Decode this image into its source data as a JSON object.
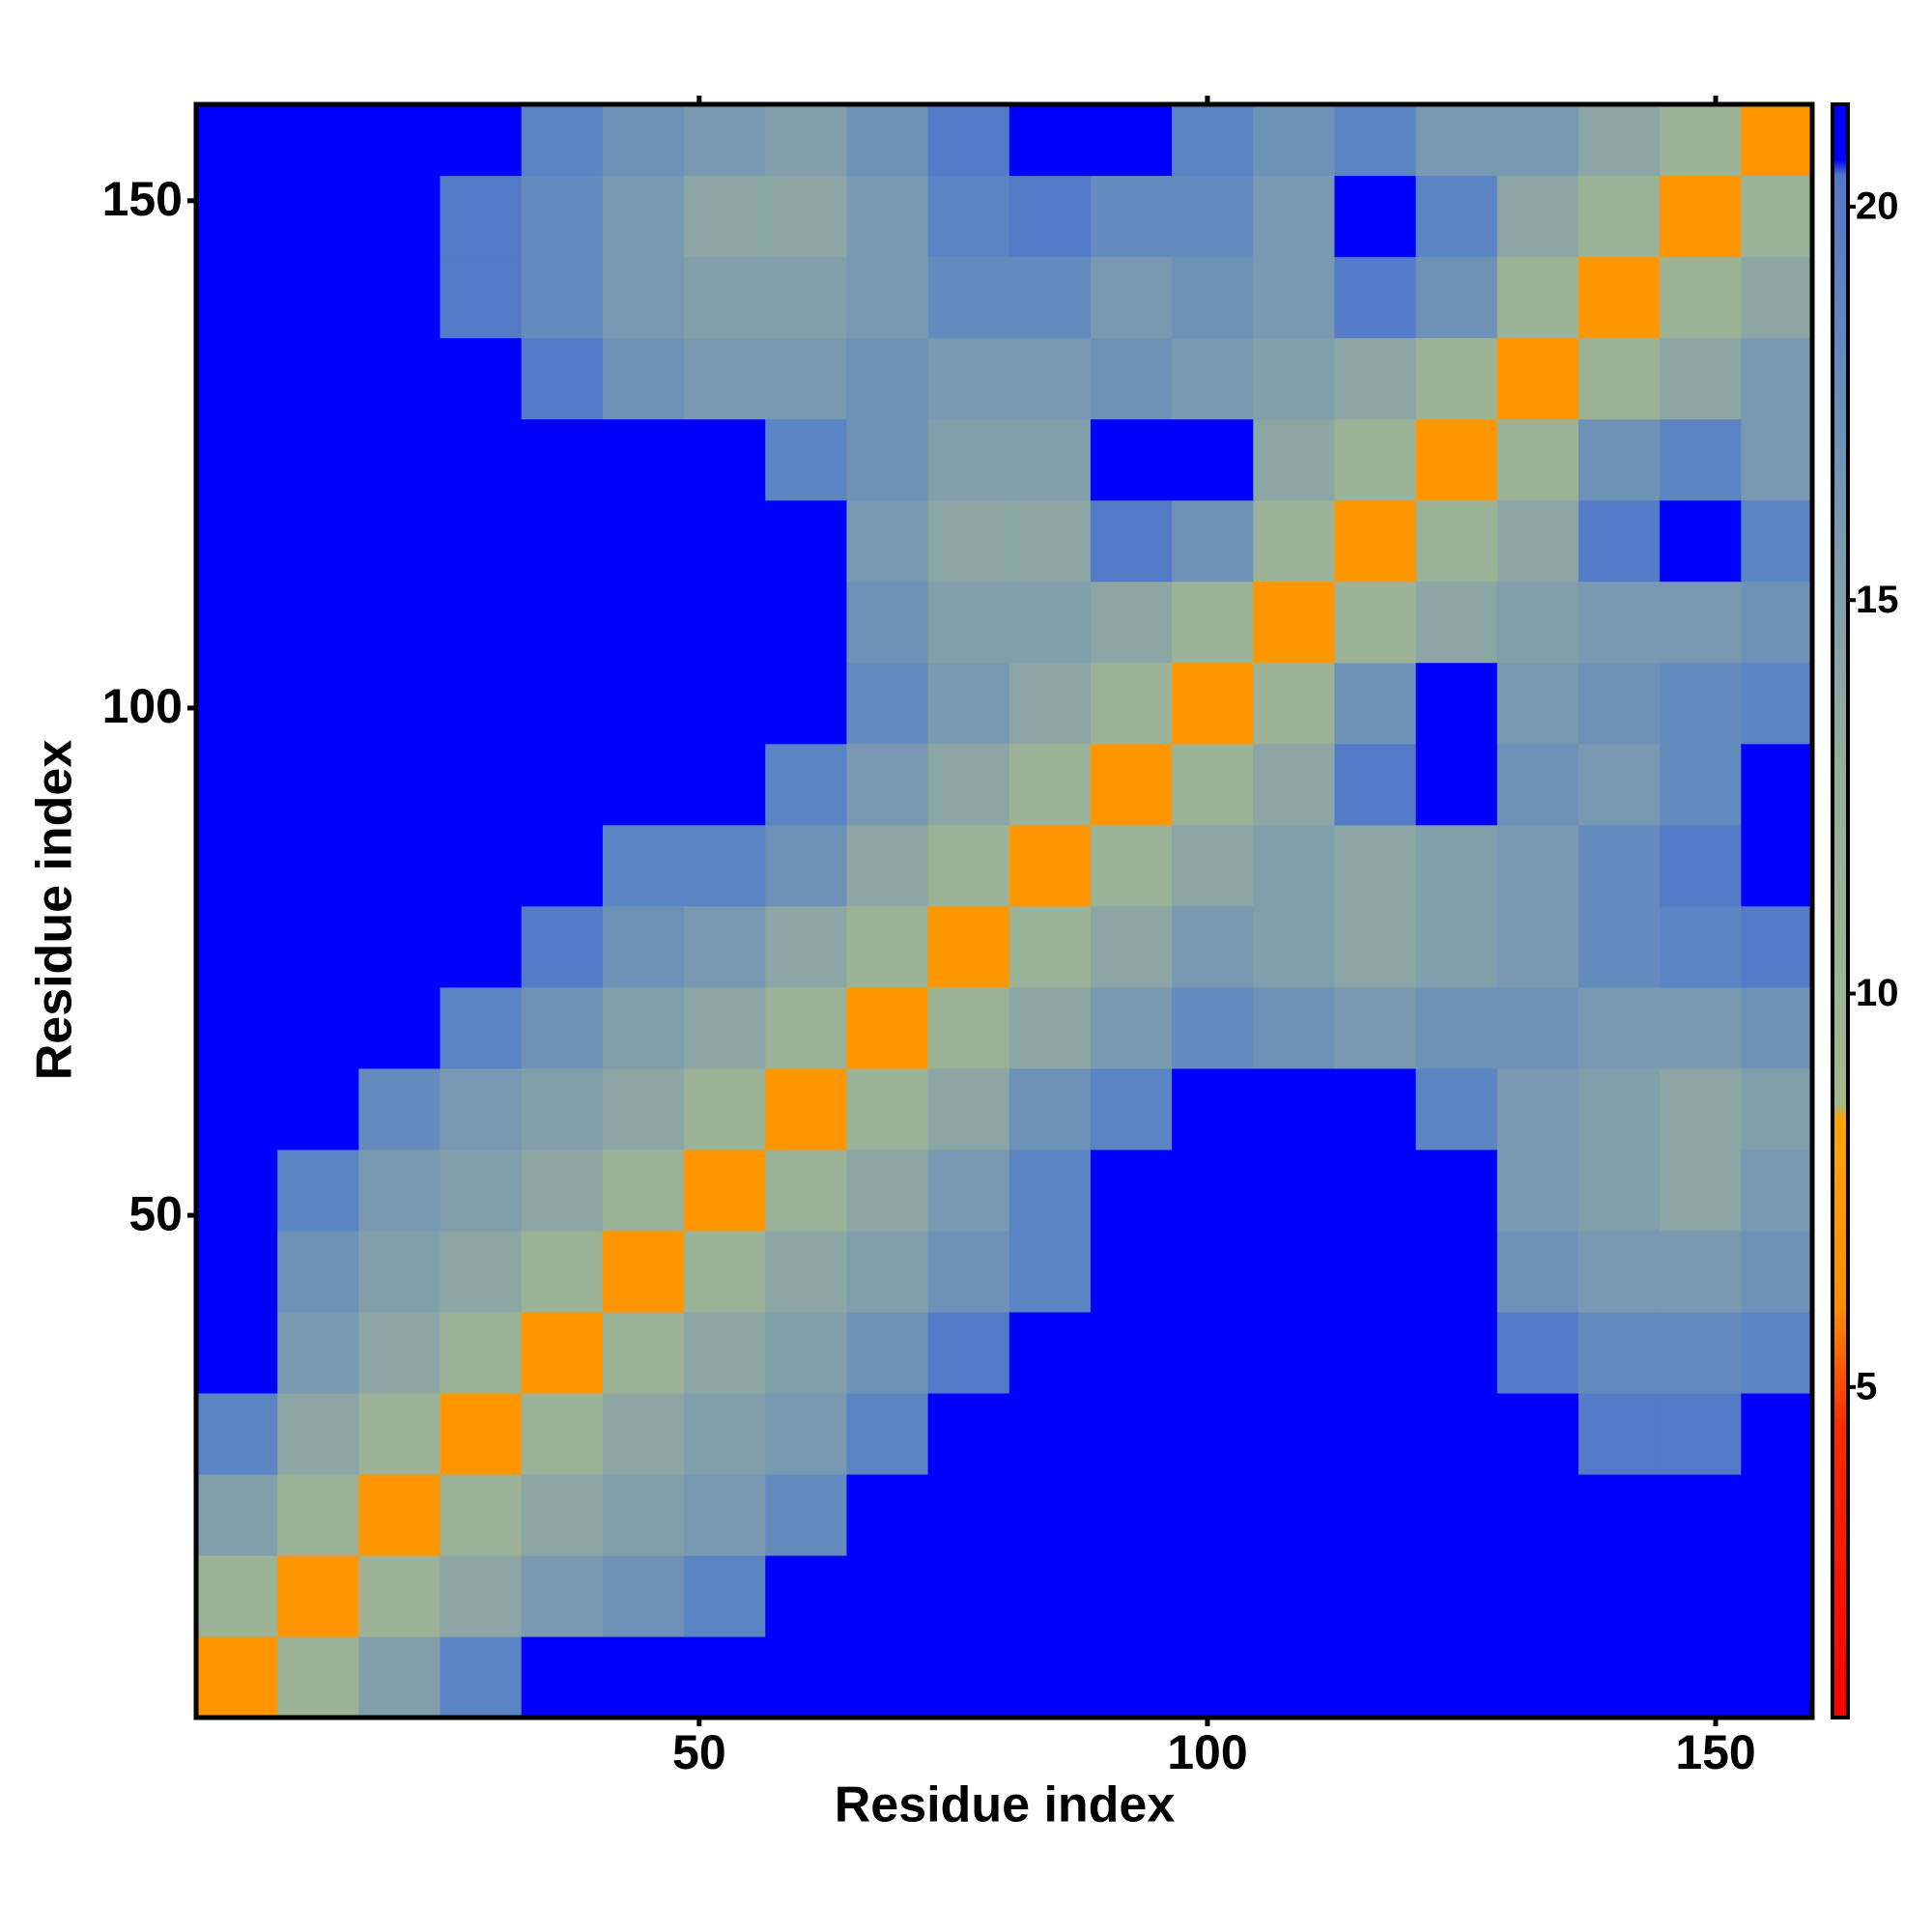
{
  "chart_data": {
    "type": "heatmap",
    "x_label": "Residue index",
    "y_label": "Residue index",
    "bins": [
      0.5,
      8.5,
      16.5,
      24.5,
      32.5,
      40.5,
      48.5,
      56.5,
      64.5,
      72.5,
      80.5,
      88.5,
      96.5,
      104.5,
      112.5,
      120.5,
      128.5,
      136.5,
      144.5,
      152.5,
      159.5
    ],
    "values": [
      [
        7,
        11,
        15,
        19,
        22,
        22,
        22,
        22,
        22,
        22,
        22,
        22,
        22,
        22,
        22,
        22,
        22,
        22,
        22,
        22
      ],
      [
        11,
        7,
        11,
        14,
        16,
        17,
        19,
        22,
        22,
        22,
        22,
        22,
        22,
        22,
        22,
        22,
        22,
        22,
        22,
        22
      ],
      [
        15,
        11,
        7,
        11,
        14,
        15,
        16,
        18,
        21,
        22,
        22,
        22,
        22,
        22,
        22,
        22,
        22,
        21,
        21,
        22
      ],
      [
        19,
        14,
        11,
        7,
        11,
        14,
        15,
        16,
        19,
        22,
        22,
        22,
        22,
        22,
        22,
        22,
        21,
        20,
        20,
        21
      ],
      [
        22,
        16,
        14,
        11,
        7,
        11,
        14,
        15,
        17,
        20,
        22,
        22,
        22,
        22,
        22,
        22,
        20,
        18,
        18,
        19
      ],
      [
        22,
        17,
        15,
        14,
        11,
        7,
        11,
        14,
        15,
        17,
        19,
        22,
        22,
        22,
        22,
        22,
        17,
        16,
        16,
        17
      ],
      [
        22,
        19,
        16,
        15,
        14,
        11,
        7,
        11,
        14,
        16,
        19,
        21,
        22,
        22,
        22,
        22,
        16,
        15,
        14,
        16
      ],
      [
        22,
        22,
        18,
        16,
        15,
        14,
        11,
        7,
        11,
        14,
        17,
        19,
        22,
        22,
        21,
        19,
        16,
        15,
        14,
        15
      ],
      [
        22,
        22,
        21,
        19,
        17,
        15,
        14,
        11,
        7,
        11,
        14,
        16,
        18,
        17,
        16,
        17,
        17,
        16,
        16,
        17
      ],
      [
        22,
        22,
        22,
        22,
        20,
        17,
        16,
        14,
        11,
        7,
        11,
        14,
        16,
        15,
        14,
        15,
        16,
        18,
        19,
        20
      ],
      [
        22,
        22,
        22,
        22,
        22,
        19,
        19,
        17,
        14,
        11,
        7,
        11,
        14,
        15,
        14,
        15,
        16,
        18,
        20,
        22
      ],
      [
        22,
        22,
        22,
        22,
        22,
        22,
        21,
        19,
        16,
        14,
        11,
        7,
        11,
        14,
        20,
        22,
        17,
        16,
        18,
        21
      ],
      [
        22,
        22,
        22,
        22,
        22,
        22,
        22,
        22,
        18,
        16,
        14,
        11,
        7,
        11,
        17,
        21,
        16,
        17,
        18,
        19
      ],
      [
        22,
        22,
        22,
        22,
        22,
        22,
        22,
        22,
        17,
        15,
        15,
        14,
        11,
        7,
        11,
        14,
        15,
        16,
        16,
        17
      ],
      [
        22,
        22,
        22,
        22,
        22,
        22,
        22,
        21,
        16,
        14,
        14,
        20,
        17,
        11,
        7,
        11,
        14,
        20,
        21,
        19
      ],
      [
        22,
        22,
        22,
        22,
        22,
        22,
        22,
        19,
        17,
        15,
        15,
        22,
        21,
        14,
        11,
        7,
        11,
        17,
        19,
        16
      ],
      [
        22,
        22,
        22,
        21,
        20,
        17,
        16,
        16,
        17,
        16,
        16,
        17,
        16,
        15,
        14,
        11,
        7,
        11,
        14,
        16
      ],
      [
        22,
        22,
        21,
        20,
        18,
        16,
        15,
        15,
        16,
        18,
        18,
        16,
        17,
        16,
        20,
        17,
        11,
        7,
        11,
        14
      ],
      [
        22,
        22,
        21,
        20,
        18,
        16,
        14,
        14,
        16,
        19,
        20,
        18,
        18,
        16,
        21,
        19,
        14,
        11,
        7,
        11
      ],
      [
        22,
        22,
        22,
        21,
        19,
        17,
        16,
        15,
        17,
        20,
        22,
        21,
        19,
        17,
        19,
        16,
        16,
        14,
        11,
        7
      ]
    ],
    "xlim": [
      0.5,
      159.5
    ],
    "ylim": [
      0.5,
      159.5
    ],
    "xticks": [
      50,
      100,
      150
    ],
    "yticks": [
      50,
      100,
      150
    ],
    "clim": [
      0.8,
      21.3
    ],
    "cticks": [
      5,
      10,
      15,
      20
    ],
    "colorscale": [
      [
        0.8,
        "#ff0000"
      ],
      [
        4.5,
        "#ff2a00"
      ],
      [
        6,
        "#ff8c00"
      ],
      [
        8.4,
        "#ffa500"
      ],
      [
        8.6,
        "#a3b98c"
      ],
      [
        13,
        "#94ad9e"
      ],
      [
        19,
        "#5b84c4"
      ],
      [
        20.4,
        "#5078c8"
      ],
      [
        20.6,
        "#0000ff"
      ],
      [
        21.3,
        "#0000ff"
      ]
    ]
  }
}
